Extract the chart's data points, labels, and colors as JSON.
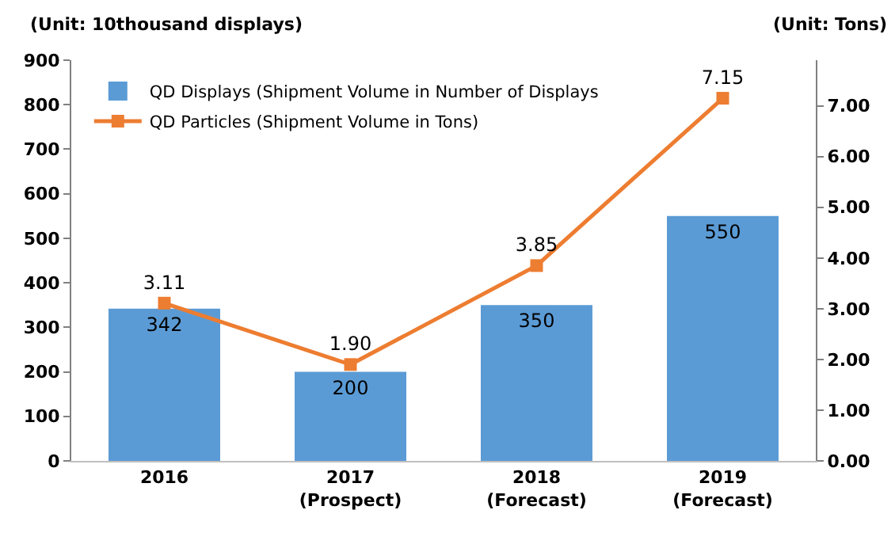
{
  "chart_data": {
    "type": "bar",
    "ylabel": "(Unit: 10thousand displays)",
    "y2label": "(Unit: Tons)",
    "categories": [
      "2016",
      "2017\n(Prospect)",
      "2018\n(Forecast)",
      "2019\n(Forecast)"
    ],
    "series": [
      {
        "name": "QD Displays (Shipment Volume in Number of Displays",
        "color": "#5b9bd5",
        "values": [
          342,
          200,
          350,
          550
        ],
        "value_labels": [
          "342",
          "200",
          "350",
          "550"
        ]
      },
      {
        "name": "QD Particles (Shipment Volume in Tons)",
        "type": "line",
        "axis": "y2",
        "color": "#ed7d31",
        "marker": "square",
        "values": [
          3.11,
          1.9,
          3.85,
          7.15
        ],
        "value_labels": [
          "3.11",
          "1.90",
          "3.85",
          "7.15"
        ]
      }
    ],
    "ylim": [
      0,
      900
    ],
    "yticks": [
      0,
      100,
      200,
      300,
      400,
      500,
      600,
      700,
      800,
      900
    ],
    "y2lim": [
      0,
      7.9
    ],
    "y2ticks": [
      {
        "value": 0,
        "label": "0.00"
      },
      {
        "value": 1,
        "label": "1.00"
      },
      {
        "value": 2,
        "label": "2.00"
      },
      {
        "value": 3,
        "label": "3.00"
      },
      {
        "value": 4,
        "label": "4.00"
      },
      {
        "value": 5,
        "label": "5.00"
      },
      {
        "value": 6,
        "label": "6.00"
      },
      {
        "value": 7,
        "label": "7.00"
      }
    ],
    "grid": false,
    "legend": "top left"
  }
}
